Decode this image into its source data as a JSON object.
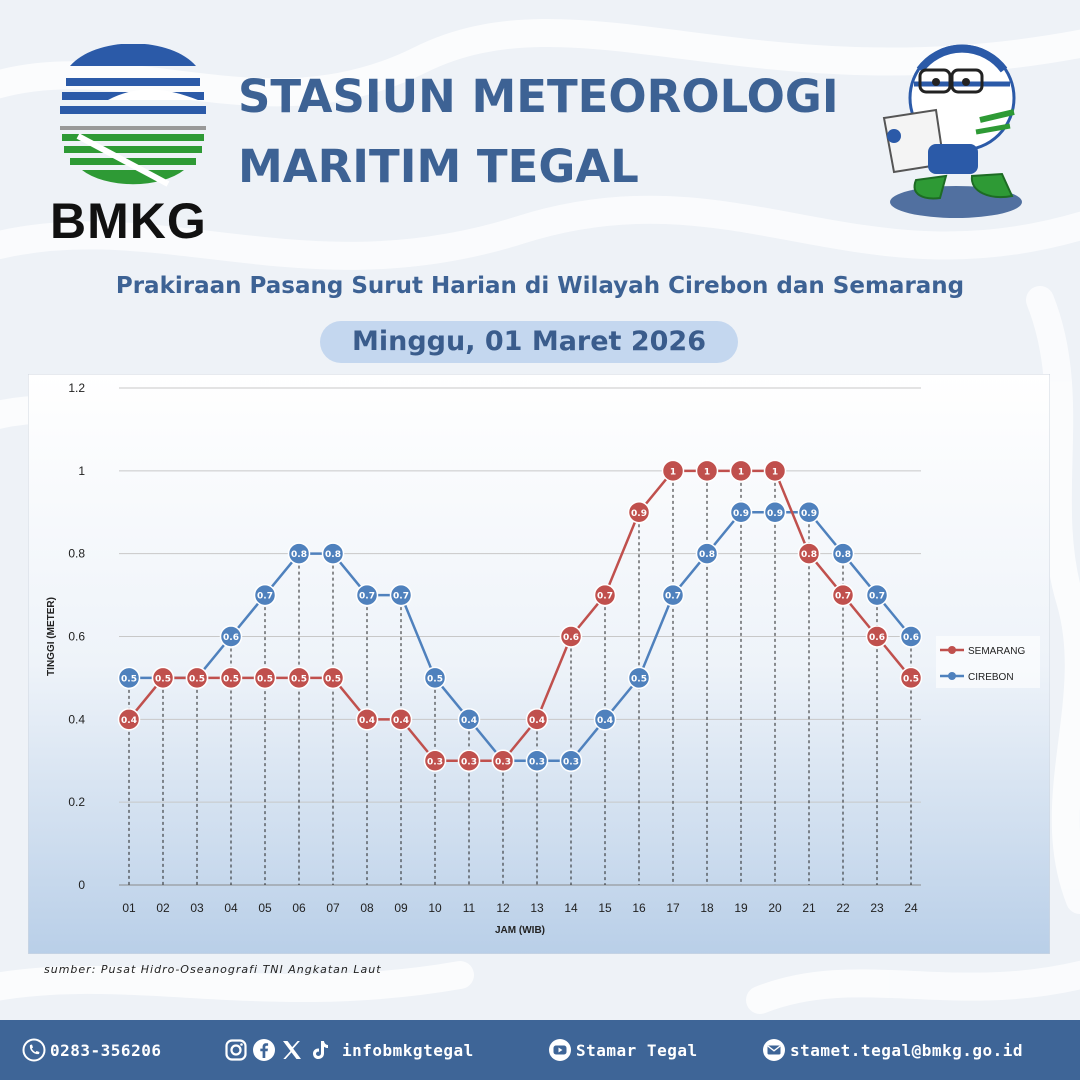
{
  "header": {
    "logo_text": "BMKG",
    "title_line1": "STASIUN METEOROLOGI",
    "title_line2": "MARITIM TEGAL",
    "subtitle": "Prakiraan Pasang Surut Harian di Wilayah Cirebon dan Semarang",
    "date": "Minggu, 01 Maret 2026"
  },
  "chart_data": {
    "type": "line",
    "title": "",
    "xlabel": "JAM (WIB)",
    "ylabel": "TINGGI (METER)",
    "ylim": [
      0,
      1.2
    ],
    "yticks": [
      "0",
      "0.2",
      "0.4",
      "0.6",
      "0.8",
      "1",
      "1.2"
    ],
    "categories": [
      "01",
      "02",
      "03",
      "04",
      "05",
      "06",
      "07",
      "08",
      "09",
      "10",
      "11",
      "12",
      "13",
      "14",
      "15",
      "16",
      "17",
      "18",
      "19",
      "20",
      "21",
      "22",
      "23",
      "24"
    ],
    "legend_position": "right",
    "grid": true,
    "series": [
      {
        "name": "SEMARANG",
        "color": "#c0504d",
        "values": [
          0.4,
          0.5,
          0.5,
          0.5,
          0.5,
          0.5,
          0.5,
          0.4,
          0.4,
          0.3,
          0.3,
          0.3,
          0.4,
          0.6,
          0.7,
          0.9,
          1,
          1,
          1,
          1,
          0.8,
          0.7,
          0.6,
          0.5
        ]
      },
      {
        "name": "CIREBON",
        "color": "#4f81bd",
        "values": [
          0.5,
          0.5,
          0.5,
          0.6,
          0.7,
          0.8,
          0.8,
          0.7,
          0.7,
          0.5,
          0.4,
          0.3,
          0.3,
          0.3,
          0.4,
          0.5,
          0.7,
          0.8,
          0.9,
          0.9,
          0.9,
          0.8,
          0.7,
          0.6
        ]
      }
    ]
  },
  "source": "sumber: Pusat Hidro-Oseanografi TNI Angkatan Laut",
  "footer": {
    "phone": "0283-356206",
    "social": "infobmkgtegal",
    "youtube": "Stamar Tegal",
    "email": "stamet.tegal@bmkg.go.id",
    "icons": [
      "phone-icon",
      "instagram-icon",
      "facebook-icon",
      "x-icon",
      "tiktok-icon",
      "youtube-icon",
      "email-icon"
    ]
  },
  "colors": {
    "title": "#3d6294",
    "footer_bg": "#3e6597",
    "pill": "#c4d7ef"
  }
}
